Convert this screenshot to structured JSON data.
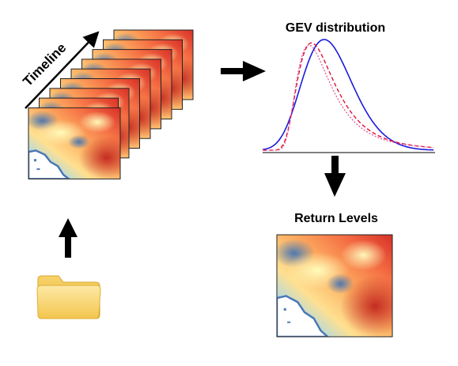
{
  "timeline": {
    "label": "Timeline",
    "frame_count": 9
  },
  "gev": {
    "title": "GEV distribution",
    "curve_colors": [
      "#1a1adf",
      "#e0002a",
      "#e05a9a"
    ]
  },
  "return_levels": {
    "title": "Return Levels"
  },
  "icons": {
    "folder": "folder-icon",
    "arrow_up": "arrow-up-icon",
    "arrow_right": "arrow-right-icon",
    "arrow_down": "arrow-down-icon",
    "timeline_arrow": "timeline-arrow-icon"
  },
  "colors": {
    "map_hot": "#d73027",
    "map_warm": "#fc8d59",
    "map_mid": "#fee090",
    "map_cool": "#e0f3f8",
    "map_cold": "#4575b4",
    "folder": "#f5c542"
  }
}
